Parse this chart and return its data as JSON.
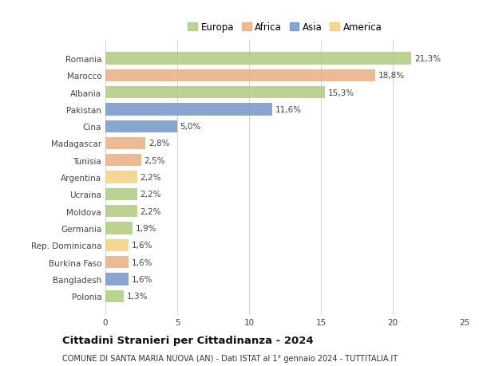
{
  "categories": [
    "Polonia",
    "Bangladesh",
    "Burkina Faso",
    "Rep. Dominicana",
    "Germania",
    "Moldova",
    "Ucraina",
    "Argentina",
    "Tunisia",
    "Madagascar",
    "Cina",
    "Pakistan",
    "Albania",
    "Marocco",
    "Romania"
  ],
  "values": [
    1.3,
    1.6,
    1.6,
    1.6,
    1.9,
    2.2,
    2.2,
    2.2,
    2.5,
    2.8,
    5.0,
    11.6,
    15.3,
    18.8,
    21.3
  ],
  "labels": [
    "1,3%",
    "1,6%",
    "1,6%",
    "1,6%",
    "1,9%",
    "2,2%",
    "2,2%",
    "2,2%",
    "2,5%",
    "2,8%",
    "5,0%",
    "11,6%",
    "15,3%",
    "18,8%",
    "21,3%"
  ],
  "continents": [
    "Europa",
    "Asia",
    "Africa",
    "America",
    "Europa",
    "Europa",
    "Europa",
    "America",
    "Africa",
    "Africa",
    "Asia",
    "Asia",
    "Europa",
    "Africa",
    "Europa"
  ],
  "colors": {
    "Europa": "#adc97a",
    "Africa": "#e8ac7e",
    "Asia": "#6e93c5",
    "America": "#f0d07a"
  },
  "legend_order": [
    "Europa",
    "Africa",
    "Asia",
    "America"
  ],
  "title": "Cittadini Stranieri per Cittadinanza - 2024",
  "subtitle": "COMUNE DI SANTA MARIA NUOVA (AN) - Dati ISTAT al 1° gennaio 2024 - TUTTITALIA.IT",
  "xlim": [
    0,
    25
  ],
  "xticks": [
    0,
    5,
    10,
    15,
    20,
    25
  ],
  "background_color": "#ffffff",
  "bar_height": 0.72,
  "label_fontsize": 7.5,
  "tick_fontsize": 7.5,
  "title_fontsize": 9.5,
  "subtitle_fontsize": 7.0
}
